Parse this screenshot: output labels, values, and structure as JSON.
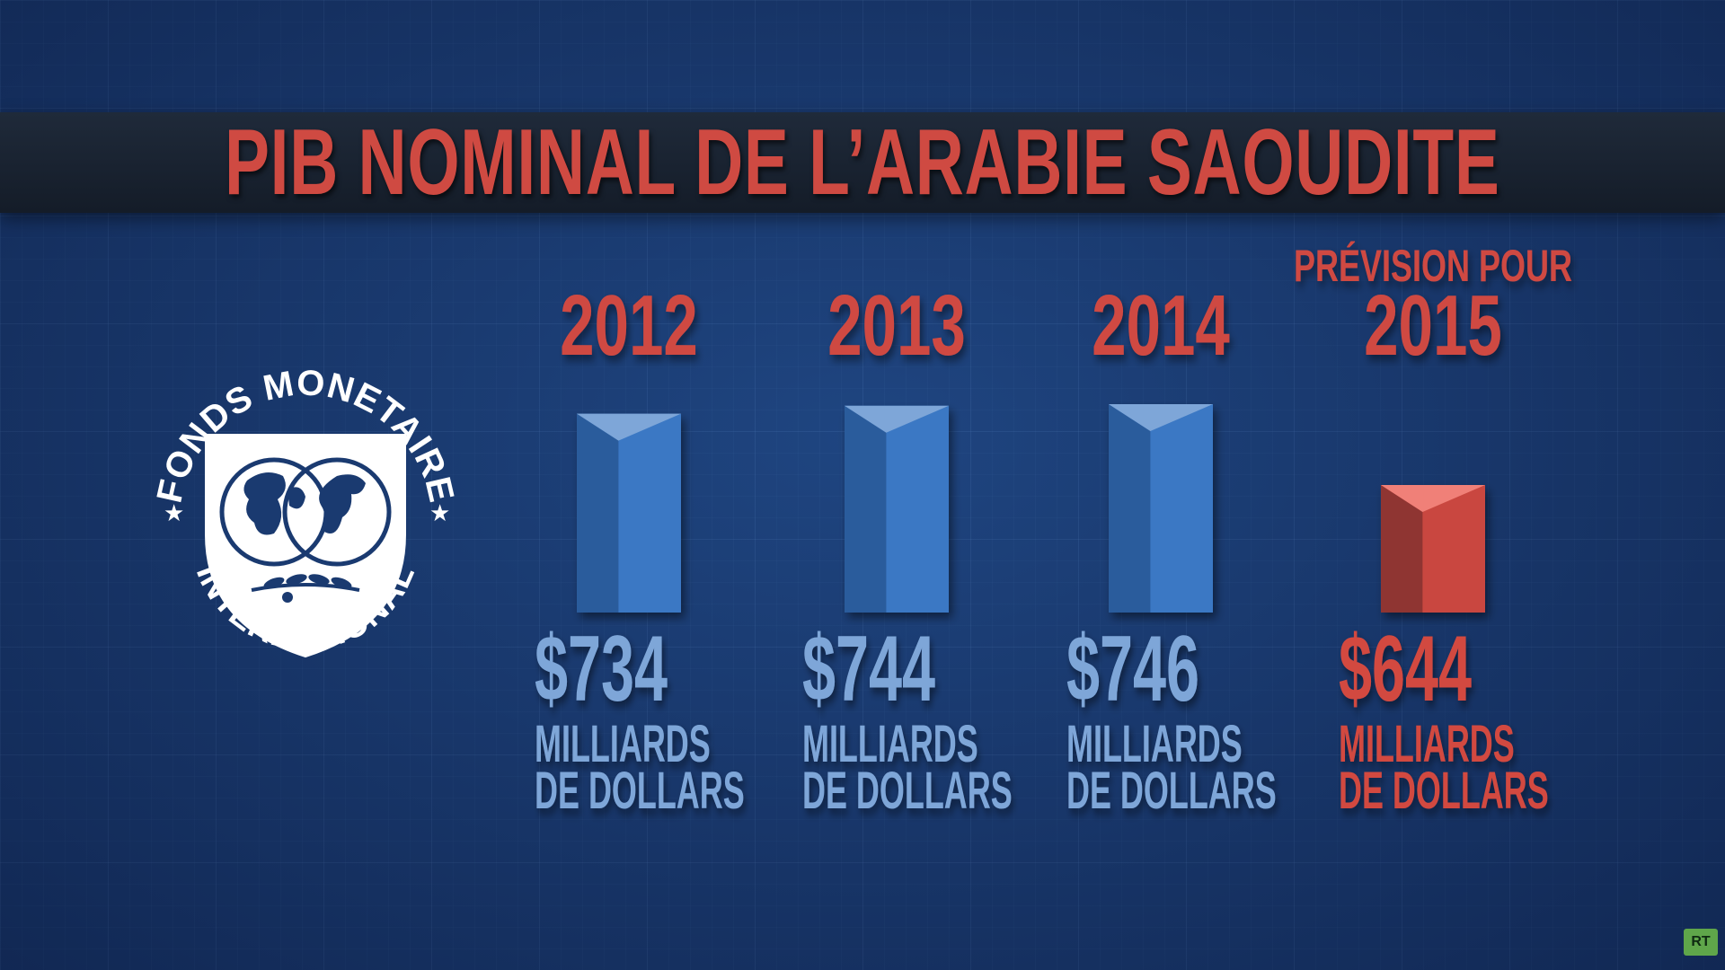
{
  "title": "PIB NOMINAL DE L’ARABIE SAOUDITE",
  "logo": {
    "top_text": "FONDS MONETAIRE",
    "bottom_text": "INTERNATIONAL"
  },
  "watermark": "RT",
  "colors": {
    "title": "#cf4a42",
    "bar_blue": "#3a78c4",
    "bar_red": "#c9473f",
    "label_blue": "#7ea6d8",
    "label_red": "#d24a40"
  },
  "chart_data": {
    "type": "bar",
    "title": "PIB NOMINAL DE L’ARABIE SAOUDITE",
    "categories": [
      "2012",
      "2013",
      "2014",
      "2015"
    ],
    "forecast_label": "PRÉVISION POUR",
    "series": [
      {
        "values": [
          734,
          744,
          746,
          644
        ]
      }
    ],
    "value_labels": [
      "$734",
      "$744",
      "$746",
      "$644"
    ],
    "unit_line1": "MILLIARDS",
    "unit_line2": "DE DOLLARS",
    "highlight_category": "2015",
    "grid": true,
    "legend": "none"
  }
}
